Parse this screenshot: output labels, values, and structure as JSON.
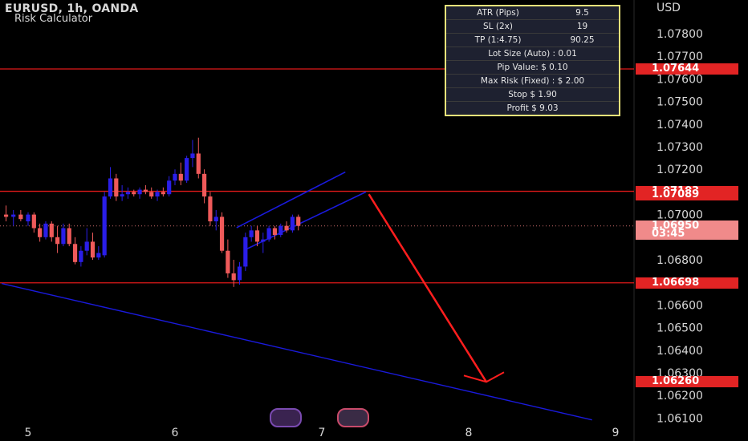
{
  "header": {
    "title": "EURUSD, 1h, OANDA",
    "subtitle": "Risk Calculator",
    "currency": "USD"
  },
  "risk_calculator": [
    {
      "key": "ATR (Pips)",
      "value": "9.5"
    },
    {
      "key": "SL (2x)",
      "value": "19"
    },
    {
      "key": "TP (1:4.75)",
      "value": "90.25"
    },
    {
      "key": "Lot Size (Auto) : 0.01",
      "value": null
    },
    {
      "key": "Pip Value: $ 0.10",
      "value": null
    },
    {
      "key": "Max Risk (Fixed) : $ 2.00",
      "value": null
    },
    {
      "key": "Stop $ 1.90",
      "value": null
    },
    {
      "key": "Profit $ 9.03",
      "value": null
    }
  ],
  "price_tags": [
    {
      "label": "1.07644",
      "price": 1.07644,
      "style": "red"
    },
    {
      "label": "1.07103",
      "price": 1.07103,
      "style": "red"
    },
    {
      "label": "1.07089",
      "price": 1.07089,
      "style": "red"
    },
    {
      "label": "1.06950",
      "price": 1.0695,
      "style": "current"
    },
    {
      "label": "03:45",
      "price": 1.06915,
      "style": "current"
    },
    {
      "label": "1.06698",
      "price": 1.06698,
      "style": "red"
    },
    {
      "label": "1.06260",
      "price": 1.0626,
      "style": "red"
    }
  ],
  "colors": {
    "background": "#000000",
    "up_candle": "#2a1ee8",
    "down_candle": "#ef5a5a",
    "level_line": "#e01a1a",
    "channel": "#1a1adc",
    "arrow": "#ff1e1e"
  },
  "chart_data": {
    "type": "candlestick",
    "symbol": "EURUSD",
    "timeframe": "1h",
    "x_ticks": [
      "5",
      "6",
      "7",
      "8",
      "9"
    ],
    "y_ticks": [
      "1.06100",
      "1.06200",
      "1.06300",
      "1.06400",
      "1.06500",
      "1.06600",
      "1.06800",
      "1.07000",
      "1.07200",
      "1.07300",
      "1.07400",
      "1.07500",
      "1.07600",
      "1.07700",
      "1.07800"
    ],
    "ylim": [
      1.0605,
      1.0795
    ],
    "xlim": [
      4.82,
      9.05
    ],
    "horizontal_levels": [
      1.07644,
      1.07103,
      1.06698
    ],
    "current_price": 1.0695,
    "candles": [
      [
        4.85,
        1.07,
        1.0704,
        1.0697,
        1.0699
      ],
      [
        4.9,
        1.0699,
        1.0702,
        1.0695,
        1.07
      ],
      [
        4.95,
        1.07,
        1.0702,
        1.0697,
        1.0698
      ],
      [
        5.0,
        1.0697,
        1.0701,
        1.0695,
        1.07
      ],
      [
        5.04,
        1.07,
        1.0701,
        1.0692,
        1.0694
      ],
      [
        5.08,
        1.0694,
        1.0696,
        1.0688,
        1.069
      ],
      [
        5.12,
        1.069,
        1.0697,
        1.0689,
        1.0696
      ],
      [
        5.16,
        1.0696,
        1.0697,
        1.0688,
        1.069
      ],
      [
        5.2,
        1.069,
        1.0695,
        1.0683,
        1.0687
      ],
      [
        5.24,
        1.0687,
        1.0696,
        1.0686,
        1.0694
      ],
      [
        5.28,
        1.0694,
        1.0696,
        1.0686,
        1.0687
      ],
      [
        5.32,
        1.0687,
        1.069,
        1.0678,
        1.0679
      ],
      [
        5.36,
        1.0679,
        1.0686,
        1.0677,
        1.0684
      ],
      [
        5.4,
        1.0684,
        1.0694,
        1.0682,
        1.0688
      ],
      [
        5.44,
        1.0688,
        1.0692,
        1.068,
        1.0681
      ],
      [
        5.48,
        1.0681,
        1.0686,
        1.068,
        1.0683
      ],
      [
        5.52,
        1.0682,
        1.071,
        1.0681,
        1.0708
      ],
      [
        5.56,
        1.0708,
        1.0721,
        1.0707,
        1.0716
      ],
      [
        5.6,
        1.0716,
        1.0718,
        1.0706,
        1.0708
      ],
      [
        5.64,
        1.0708,
        1.0713,
        1.0706,
        1.0709
      ],
      [
        5.68,
        1.0709,
        1.0712,
        1.0707,
        1.071
      ],
      [
        5.72,
        1.071,
        1.0711,
        1.0708,
        1.0709
      ],
      [
        5.76,
        1.0709,
        1.0712,
        1.0707,
        1.0711
      ],
      [
        5.8,
        1.0711,
        1.0713,
        1.0709,
        1.071
      ],
      [
        5.84,
        1.071,
        1.0712,
        1.0707,
        1.0708
      ],
      [
        5.88,
        1.0708,
        1.0711,
        1.0706,
        1.071
      ],
      [
        5.92,
        1.071,
        1.0712,
        1.0708,
        1.0709
      ],
      [
        5.96,
        1.0709,
        1.0717,
        1.0708,
        1.0715
      ],
      [
        6.0,
        1.0715,
        1.072,
        1.0713,
        1.0718
      ],
      [
        6.04,
        1.0718,
        1.0723,
        1.0713,
        1.0715
      ],
      [
        6.08,
        1.0715,
        1.0726,
        1.0714,
        1.0725
      ],
      [
        6.12,
        1.0725,
        1.0733,
        1.0721,
        1.0727
      ],
      [
        6.16,
        1.0727,
        1.0734,
        1.0716,
        1.0718
      ],
      [
        6.2,
        1.0718,
        1.072,
        1.0705,
        1.0708
      ],
      [
        6.24,
        1.0708,
        1.071,
        1.0695,
        1.0697
      ],
      [
        6.28,
        1.0697,
        1.0702,
        1.0693,
        1.0699
      ],
      [
        6.32,
        1.0699,
        1.0701,
        1.0683,
        1.0684
      ],
      [
        6.36,
        1.0684,
        1.0689,
        1.0672,
        1.0674
      ],
      [
        6.4,
        1.0674,
        1.068,
        1.0668,
        1.0671
      ],
      [
        6.44,
        1.0671,
        1.0679,
        1.0669,
        1.0677
      ],
      [
        6.48,
        1.0677,
        1.0692,
        1.0675,
        1.069
      ],
      [
        6.52,
        1.069,
        1.0695,
        1.0688,
        1.0693
      ],
      [
        6.56,
        1.0693,
        1.0695,
        1.0686,
        1.0688
      ],
      [
        6.6,
        1.0688,
        1.0692,
        1.0683,
        1.0689
      ],
      [
        6.64,
        1.0689,
        1.0695,
        1.0688,
        1.0694
      ],
      [
        6.68,
        1.0694,
        1.0695,
        1.0689,
        1.0691
      ],
      [
        6.72,
        1.0691,
        1.0696,
        1.069,
        1.0695
      ],
      [
        6.76,
        1.0695,
        1.0697,
        1.0692,
        1.0693
      ],
      [
        6.8,
        1.0693,
        1.07,
        1.0692,
        1.0699
      ],
      [
        6.84,
        1.0699,
        1.07,
        1.0693,
        1.0695
      ]
    ],
    "channel_lines": [
      {
        "x1": 6.42,
        "y1": 1.06942,
        "x2": 7.16,
        "y2": 1.07188
      },
      {
        "x1": 6.47,
        "y1": 1.06842,
        "x2": 7.3,
        "y2": 1.071
      }
    ],
    "trend_line": {
      "x1": 4.82,
      "y1": 1.06695,
      "x2": 8.84,
      "y2": 1.06092
    },
    "arrow": {
      "x1": 7.32,
      "y1": 1.0709,
      "x2": 8.12,
      "y2": 1.0626
    }
  }
}
